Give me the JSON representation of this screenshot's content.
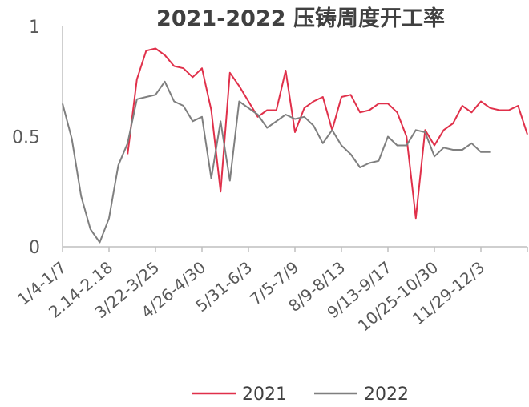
{
  "chart_data": {
    "type": "line",
    "title": "2021-2022 压铸周度开工率",
    "xlabel": "",
    "ylabel": "",
    "ylim": [
      0,
      1
    ],
    "yticks": [
      "0",
      "0.5",
      "1"
    ],
    "grid": false,
    "legend_position": "bottom",
    "tick_labels": [
      "1/4-1/7",
      "2.14-2.18",
      "3/22-3/25",
      "4/26-4/30",
      "5/31-6/3",
      "7/5-7/9",
      "8/9-8/13",
      "9/13-9/17",
      "10/25-10/30",
      "11/29-12/3"
    ],
    "tick_label_index": [
      0,
      5,
      10,
      15,
      20,
      25,
      30,
      35,
      40,
      45
    ],
    "n_points": 51,
    "series": [
      {
        "name": "2021",
        "color": "#e0304a",
        "values": [
          null,
          null,
          null,
          null,
          null,
          null,
          null,
          0.42,
          0.76,
          0.89,
          0.9,
          0.87,
          0.82,
          0.81,
          0.77,
          0.81,
          0.62,
          0.25,
          0.79,
          0.73,
          0.66,
          0.59,
          0.62,
          0.62,
          0.8,
          0.52,
          0.63,
          0.66,
          0.68,
          0.53,
          0.68,
          0.69,
          0.61,
          0.62,
          0.65,
          0.65,
          0.61,
          0.5,
          0.13,
          0.53,
          0.46,
          0.53,
          0.56,
          0.64,
          0.61,
          0.66,
          0.63,
          0.62,
          0.62,
          0.64,
          0.51
        ]
      },
      {
        "name": "2022",
        "color": "#7f7f7f",
        "values": [
          0.65,
          0.49,
          0.23,
          0.08,
          0.02,
          0.13,
          0.37,
          0.47,
          0.67,
          0.68,
          0.69,
          0.75,
          0.66,
          0.64,
          0.57,
          0.59,
          0.31,
          0.57,
          0.3,
          0.66,
          0.63,
          0.6,
          0.54,
          0.57,
          0.6,
          0.58,
          0.59,
          0.55,
          0.47,
          0.53,
          0.46,
          0.42,
          0.36,
          0.38,
          0.39,
          0.5,
          0.46,
          0.46,
          0.53,
          0.52,
          0.41,
          0.45,
          0.44,
          0.44,
          0.47,
          0.43,
          0.43,
          null,
          null,
          null,
          null
        ]
      }
    ]
  }
}
